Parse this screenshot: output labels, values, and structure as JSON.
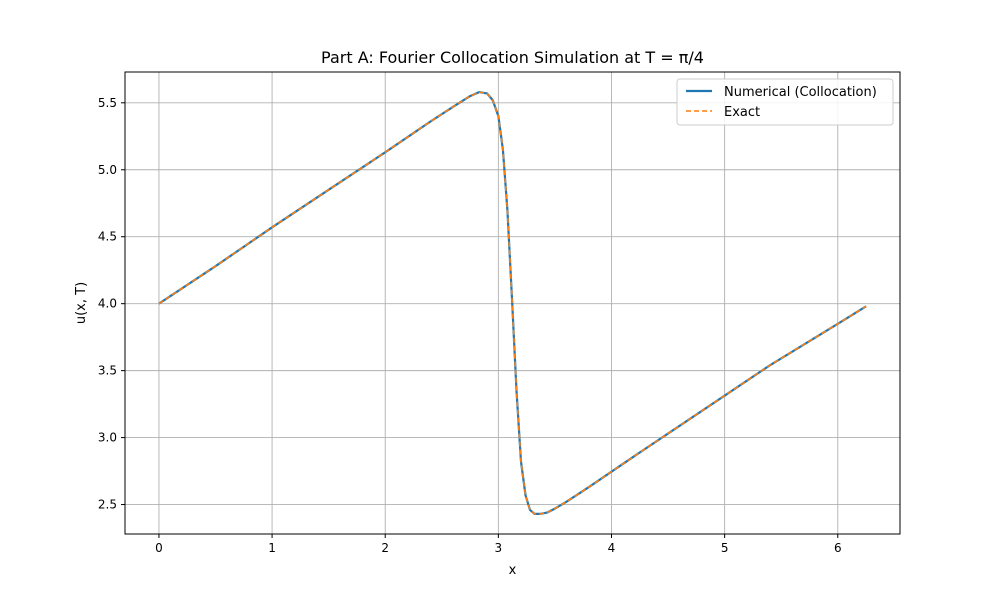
{
  "chart_data": {
    "type": "line",
    "title": "Part A: Fourier Collocation Simulation at T = π/4",
    "xlabel": "x",
    "ylabel": "u(x, T)",
    "xlim": [
      -0.3,
      6.55
    ],
    "ylim": [
      2.28,
      5.73
    ],
    "xticks": [
      0,
      1,
      2,
      3,
      4,
      5,
      6
    ],
    "yticks": [
      2.5,
      3.0,
      3.5,
      4.0,
      4.5,
      5.0,
      5.5
    ],
    "xtick_labels": [
      "0",
      "1",
      "2",
      "3",
      "4",
      "5",
      "6"
    ],
    "ytick_labels": [
      "2.5",
      "3.0",
      "3.5",
      "4.0",
      "4.5",
      "5.0",
      "5.5"
    ],
    "grid": true,
    "legend_position": "upper-right",
    "series": [
      {
        "name": "Numerical (Collocation)",
        "color": "#1f77b4",
        "style": "solid",
        "x": [
          0,
          0.5,
          1.0,
          1.5,
          2.0,
          2.4,
          2.6,
          2.75,
          2.83,
          2.9,
          2.95,
          3.0,
          3.04,
          3.08,
          3.12,
          3.16,
          3.2,
          3.24,
          3.28,
          3.32,
          3.37,
          3.43,
          3.5,
          3.6,
          3.8,
          4.2,
          4.8,
          5.4,
          6.0,
          6.25
        ],
        "y": [
          4.0,
          4.28,
          4.57,
          4.85,
          5.13,
          5.36,
          5.47,
          5.55,
          5.58,
          5.57,
          5.52,
          5.4,
          5.15,
          4.7,
          4.05,
          3.35,
          2.82,
          2.57,
          2.46,
          2.43,
          2.43,
          2.44,
          2.47,
          2.52,
          2.63,
          2.86,
          3.2,
          3.54,
          3.85,
          3.98
        ]
      },
      {
        "name": "Exact",
        "color": "#ff7f0e",
        "style": "dashed",
        "x": [
          0,
          0.5,
          1.0,
          1.5,
          2.0,
          2.4,
          2.6,
          2.75,
          2.83,
          2.9,
          2.95,
          3.0,
          3.04,
          3.08,
          3.12,
          3.16,
          3.2,
          3.24,
          3.28,
          3.32,
          3.37,
          3.43,
          3.5,
          3.6,
          3.8,
          4.2,
          4.8,
          5.4,
          6.0,
          6.25
        ],
        "y": [
          4.0,
          4.28,
          4.57,
          4.85,
          5.13,
          5.36,
          5.47,
          5.55,
          5.58,
          5.57,
          5.52,
          5.4,
          5.15,
          4.7,
          4.05,
          3.35,
          2.82,
          2.57,
          2.46,
          2.43,
          2.43,
          2.44,
          2.47,
          2.52,
          2.63,
          2.86,
          3.2,
          3.54,
          3.85,
          3.98
        ]
      }
    ]
  }
}
